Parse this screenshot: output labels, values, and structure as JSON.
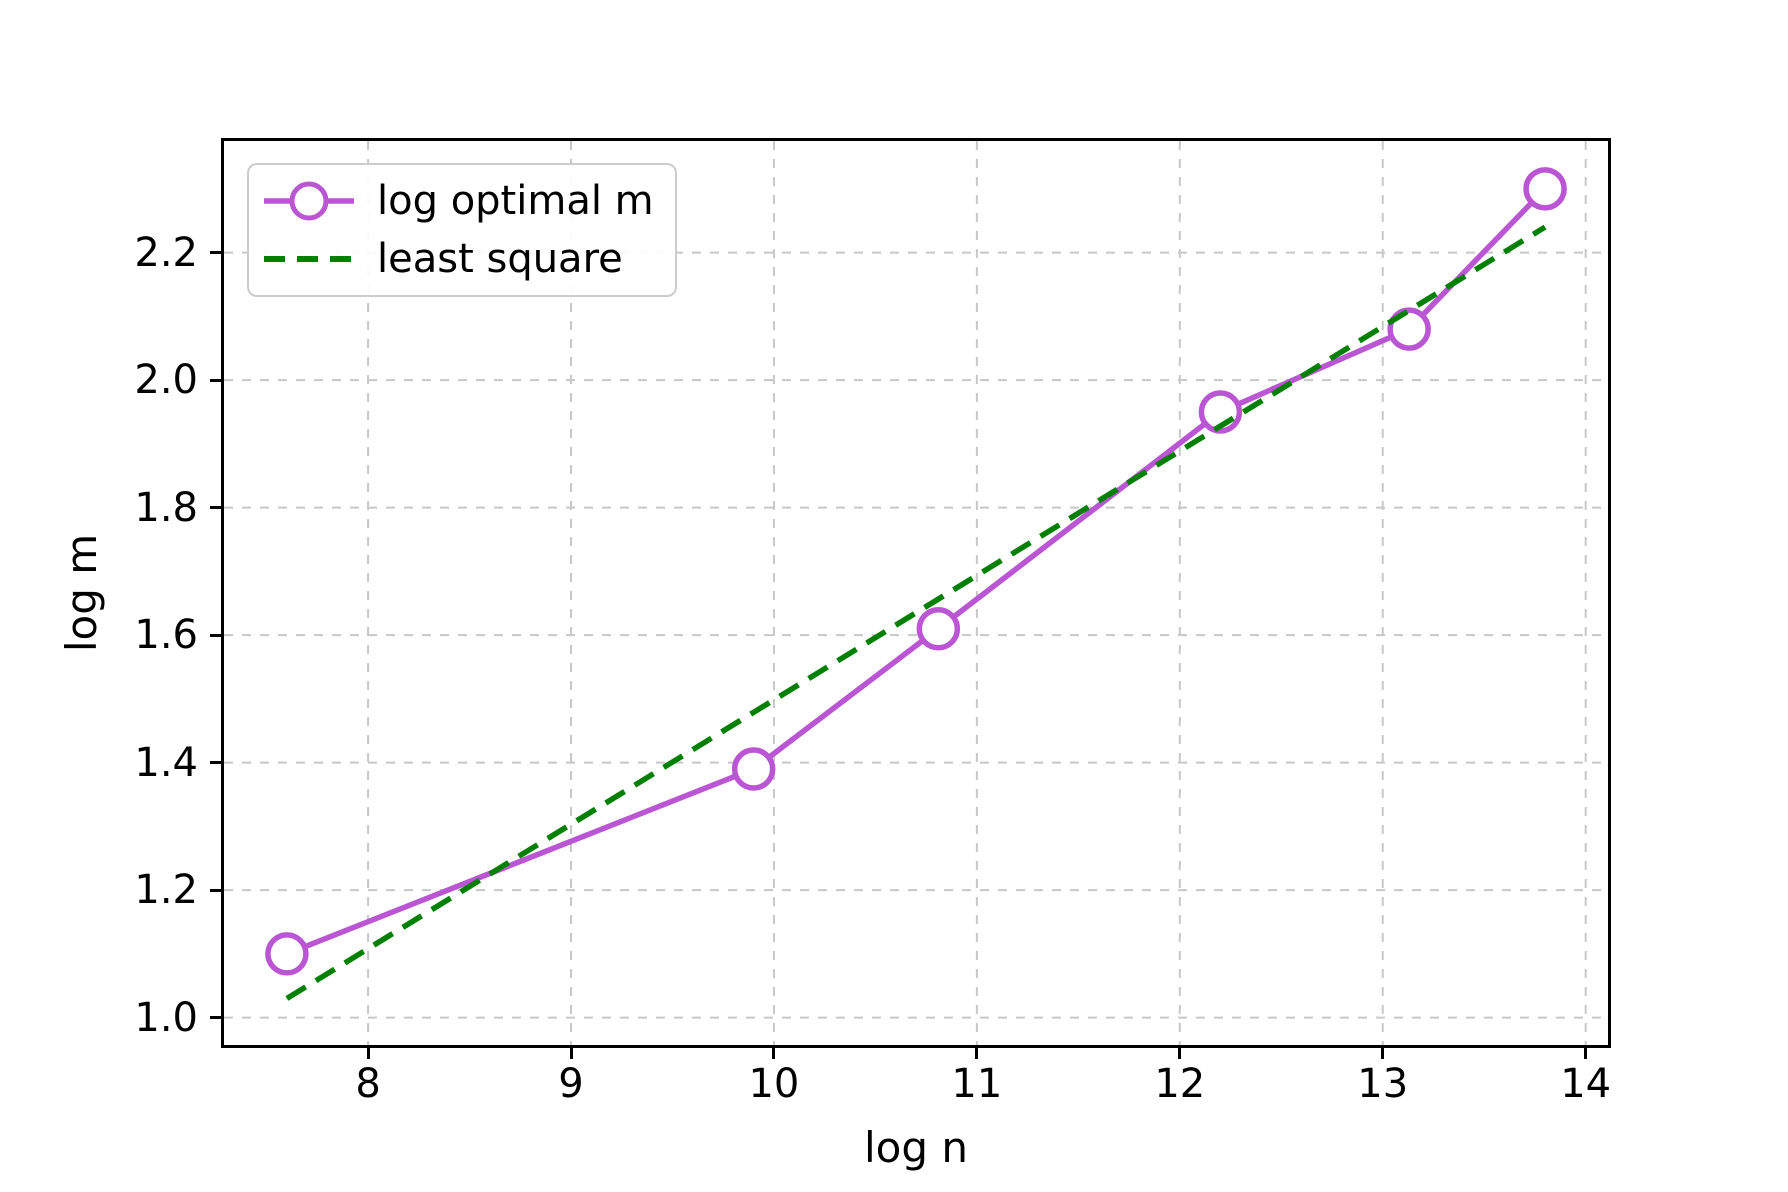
{
  "figure": {
    "background": "#ffffff",
    "text_color": "#000000",
    "spine_color": "#000000",
    "grid_color": "#c8c8c8"
  },
  "chart_data": {
    "type": "line",
    "title": "",
    "xlabel": "log n",
    "ylabel": "log m",
    "xlim": [
      7.29,
      14.11
    ],
    "ylim": [
      0.957,
      2.375
    ],
    "grid": true,
    "legend_position": "upper left",
    "xticks": [
      8,
      9,
      10,
      11,
      12,
      13,
      14
    ],
    "xtick_labels": [
      "8",
      "9",
      "10",
      "11",
      "12",
      "13",
      "14"
    ],
    "yticks": [
      1.0,
      1.2,
      1.4,
      1.6,
      1.8,
      2.0,
      2.2
    ],
    "ytick_labels": [
      "1.0",
      "1.2",
      "1.4",
      "1.6",
      "1.8",
      "2.0",
      "2.2"
    ],
    "series": [
      {
        "name": "log optimal m",
        "style": "solid",
        "marker": "open-circle",
        "color": "#ba55d3",
        "marker_fill": "#ffffff",
        "x": [
          7.6,
          9.9,
          10.81,
          12.2,
          13.13,
          13.8
        ],
        "y": [
          1.1,
          1.39,
          1.61,
          1.95,
          2.08,
          2.3
        ]
      },
      {
        "name": "least square",
        "style": "dashed",
        "marker": "none",
        "color": "#008000",
        "x": [
          7.6,
          13.8
        ],
        "y": [
          1.03,
          2.24
        ]
      }
    ]
  }
}
